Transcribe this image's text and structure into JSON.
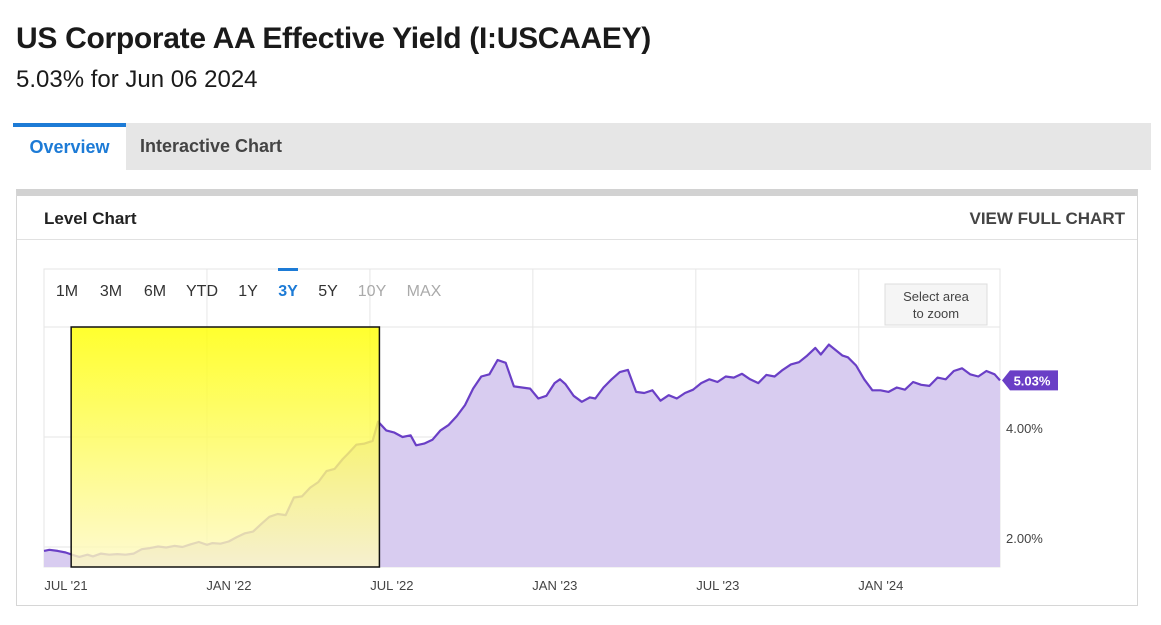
{
  "header": {
    "title": "US Corporate AA Effective Yield (I:USCAAEY)",
    "subtitle": "5.03% for Jun 06 2024"
  },
  "tabs": [
    {
      "label": "Overview",
      "active": true
    },
    {
      "label": "Interactive Chart",
      "active": false
    }
  ],
  "card": {
    "title": "Level Chart",
    "view_full_label": "VIEW FULL CHART"
  },
  "range_buttons": [
    {
      "label": "1M",
      "state": "normal"
    },
    {
      "label": "3M",
      "state": "normal"
    },
    {
      "label": "6M",
      "state": "normal"
    },
    {
      "label": "YTD",
      "state": "normal"
    },
    {
      "label": "1Y",
      "state": "normal"
    },
    {
      "label": "3Y",
      "state": "active"
    },
    {
      "label": "5Y",
      "state": "normal"
    },
    {
      "label": "10Y",
      "state": "disabled"
    },
    {
      "label": "MAX",
      "state": "disabled"
    }
  ],
  "zoom_hint": [
    "Select area",
    "to zoom"
  ],
  "colors": {
    "line": "#6a3fc6",
    "fill": "#d8ccf0",
    "accent": "#1d7bd6",
    "badge": "#6a3fc6"
  },
  "chart_data": {
    "type": "area",
    "title": "",
    "xlabel": "",
    "ylabel": "",
    "x_ticks": [
      {
        "label": "JUL '21",
        "t": 0
      },
      {
        "label": "JAN '22",
        "t": 6
      },
      {
        "label": "JUL '22",
        "t": 12
      },
      {
        "label": "JAN '23",
        "t": 18
      },
      {
        "label": "JUL '23",
        "t": 24
      },
      {
        "label": "JAN '24",
        "t": 30
      }
    ],
    "y_ticks": [
      {
        "label": "2.00%",
        "value": 2.0
      },
      {
        "label": "4.00%",
        "value": 4.0
      }
    ],
    "ylim": [
      1.8,
      6.5
    ],
    "xlim": [
      0,
      35.2
    ],
    "last_value_label": "5.03%",
    "series": [
      {
        "points": [
          [
            0.0,
            1.93
          ],
          [
            0.2,
            1.95
          ],
          [
            0.5,
            1.93
          ],
          [
            0.8,
            1.9
          ],
          [
            1.1,
            1.85
          ],
          [
            1.3,
            1.82
          ],
          [
            1.6,
            1.86
          ],
          [
            1.8,
            1.83
          ],
          [
            2.1,
            1.88
          ],
          [
            2.4,
            1.86
          ],
          [
            2.7,
            1.87
          ],
          [
            3.0,
            1.86
          ],
          [
            3.3,
            1.88
          ],
          [
            3.6,
            1.96
          ],
          [
            3.9,
            1.98
          ],
          [
            4.2,
            2.01
          ],
          [
            4.5,
            1.99
          ],
          [
            4.8,
            2.02
          ],
          [
            5.1,
            2.0
          ],
          [
            5.4,
            2.05
          ],
          [
            5.7,
            2.09
          ],
          [
            6.0,
            2.04
          ],
          [
            6.2,
            2.07
          ],
          [
            6.5,
            2.06
          ],
          [
            6.8,
            2.1
          ],
          [
            7.1,
            2.18
          ],
          [
            7.4,
            2.25
          ],
          [
            7.7,
            2.28
          ],
          [
            8.0,
            2.42
          ],
          [
            8.3,
            2.55
          ],
          [
            8.6,
            2.6
          ],
          [
            8.9,
            2.58
          ],
          [
            9.2,
            2.9
          ],
          [
            9.5,
            2.92
          ],
          [
            9.8,
            3.08
          ],
          [
            10.1,
            3.18
          ],
          [
            10.4,
            3.38
          ],
          [
            10.7,
            3.42
          ],
          [
            11.0,
            3.6
          ],
          [
            11.2,
            3.7
          ],
          [
            11.5,
            3.86
          ],
          [
            11.8,
            3.88
          ],
          [
            12.1,
            3.93
          ],
          [
            12.3,
            4.28
          ],
          [
            12.6,
            4.12
          ],
          [
            12.9,
            4.08
          ],
          [
            13.2,
            4.0
          ],
          [
            13.5,
            4.03
          ],
          [
            13.7,
            3.85
          ],
          [
            14.0,
            3.88
          ],
          [
            14.3,
            3.95
          ],
          [
            14.6,
            4.12
          ],
          [
            14.9,
            4.22
          ],
          [
            15.2,
            4.38
          ],
          [
            15.5,
            4.58
          ],
          [
            15.8,
            4.88
          ],
          [
            16.1,
            5.1
          ],
          [
            16.4,
            5.14
          ],
          [
            16.7,
            5.4
          ],
          [
            17.0,
            5.35
          ],
          [
            17.3,
            4.92
          ],
          [
            17.6,
            4.9
          ],
          [
            17.9,
            4.88
          ],
          [
            18.2,
            4.7
          ],
          [
            18.5,
            4.75
          ],
          [
            18.8,
            4.98
          ],
          [
            19.0,
            5.05
          ],
          [
            19.2,
            4.96
          ],
          [
            19.5,
            4.75
          ],
          [
            19.8,
            4.64
          ],
          [
            20.1,
            4.72
          ],
          [
            20.3,
            4.7
          ],
          [
            20.6,
            4.9
          ],
          [
            20.9,
            5.05
          ],
          [
            21.2,
            5.18
          ],
          [
            21.5,
            5.22
          ],
          [
            21.8,
            4.82
          ],
          [
            22.1,
            4.8
          ],
          [
            22.4,
            4.85
          ],
          [
            22.7,
            4.66
          ],
          [
            23.0,
            4.76
          ],
          [
            23.3,
            4.7
          ],
          [
            23.6,
            4.8
          ],
          [
            23.9,
            4.86
          ],
          [
            24.2,
            4.98
          ],
          [
            24.5,
            5.05
          ],
          [
            24.8,
            5.0
          ],
          [
            25.1,
            5.1
          ],
          [
            25.4,
            5.08
          ],
          [
            25.7,
            5.15
          ],
          [
            26.0,
            5.05
          ],
          [
            26.3,
            4.98
          ],
          [
            26.6,
            5.13
          ],
          [
            26.9,
            5.1
          ],
          [
            27.2,
            5.22
          ],
          [
            27.5,
            5.32
          ],
          [
            27.8,
            5.36
          ],
          [
            28.1,
            5.48
          ],
          [
            28.4,
            5.62
          ],
          [
            28.6,
            5.5
          ],
          [
            28.9,
            5.68
          ],
          [
            29.1,
            5.6
          ],
          [
            29.4,
            5.48
          ],
          [
            29.6,
            5.45
          ],
          [
            29.9,
            5.3
          ],
          [
            30.2,
            5.05
          ],
          [
            30.5,
            4.85
          ],
          [
            30.8,
            4.85
          ],
          [
            31.1,
            4.82
          ],
          [
            31.4,
            4.9
          ],
          [
            31.7,
            4.86
          ],
          [
            32.0,
            5.0
          ],
          [
            32.3,
            4.95
          ],
          [
            32.6,
            4.93
          ],
          [
            32.9,
            5.08
          ],
          [
            33.2,
            5.05
          ],
          [
            33.5,
            5.2
          ],
          [
            33.8,
            5.25
          ],
          [
            34.1,
            5.14
          ],
          [
            34.4,
            5.1
          ],
          [
            34.7,
            5.2
          ],
          [
            35.0,
            5.14
          ],
          [
            35.2,
            5.03
          ]
        ]
      }
    ],
    "highlight_range": [
      1.0,
      12.35
    ],
    "grid": true,
    "legend": "none"
  }
}
